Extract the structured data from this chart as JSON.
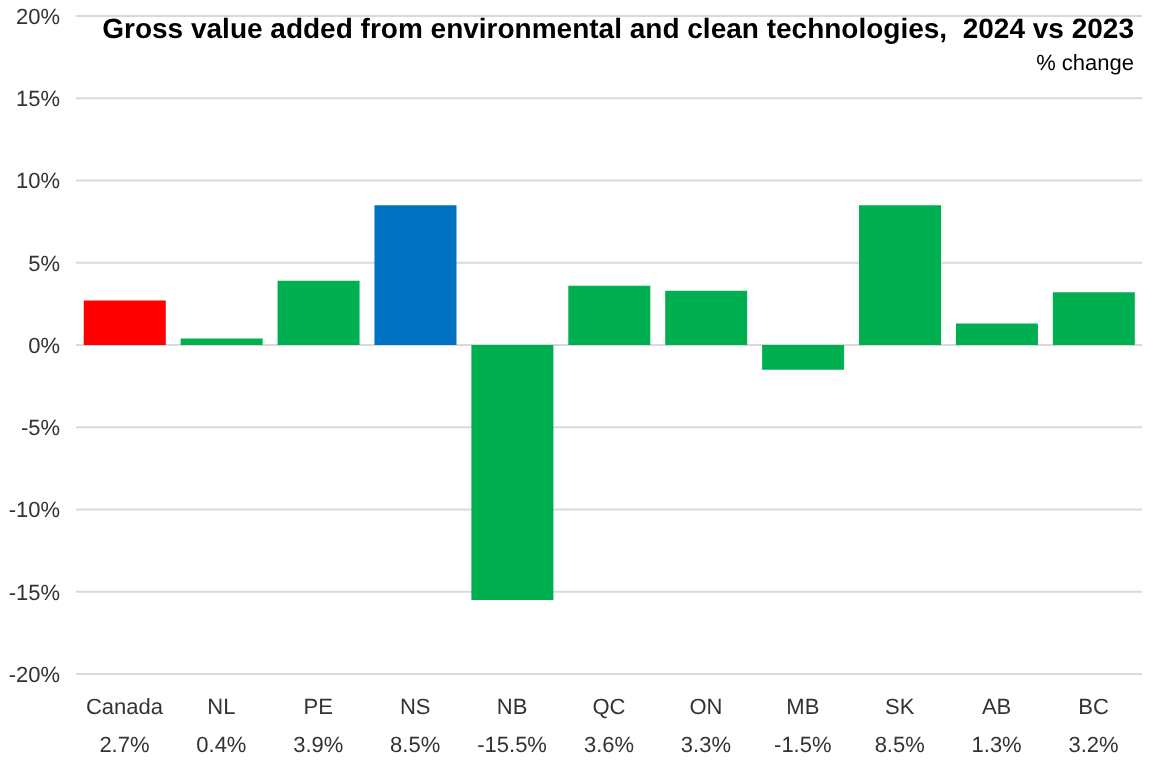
{
  "chart_data": {
    "type": "bar",
    "title": "Gross value added from environmental and clean technologies,  2024 vs 2023",
    "subtitle": "% change",
    "categories": [
      "Canada",
      "NL",
      "PE",
      "NS",
      "NB",
      "QC",
      "ON",
      "MB",
      "SK",
      "AB",
      "BC"
    ],
    "values": [
      2.7,
      0.4,
      3.9,
      8.5,
      -15.5,
      3.6,
      3.3,
      -1.5,
      8.5,
      1.3,
      3.2
    ],
    "colors": [
      "#ff0000",
      "#00b050",
      "#00b050",
      "#0070c0",
      "#00b050",
      "#00b050",
      "#00b050",
      "#00b050",
      "#00b050",
      "#00b050",
      "#00b050"
    ],
    "value_labels": [
      "2.7%",
      "0.4%",
      "3.9%",
      "8.5%",
      "-15.5%",
      "3.6%",
      "3.3%",
      "-1.5%",
      "8.5%",
      "1.3%",
      "3.2%"
    ],
    "ylim": [
      -20,
      20
    ],
    "yticks": [
      {
        "value": -20,
        "label": "-20%"
      },
      {
        "value": -15,
        "label": "-15%"
      },
      {
        "value": -10,
        "label": "-10%"
      },
      {
        "value": -5,
        "label": "-5%"
      },
      {
        "value": 0,
        "label": "0%"
      },
      {
        "value": 5,
        "label": "5%"
      },
      {
        "value": 10,
        "label": "10%"
      },
      {
        "value": 15,
        "label": "15%"
      },
      {
        "value": 20,
        "label": "20%"
      }
    ],
    "grid": "y",
    "legend": false
  }
}
